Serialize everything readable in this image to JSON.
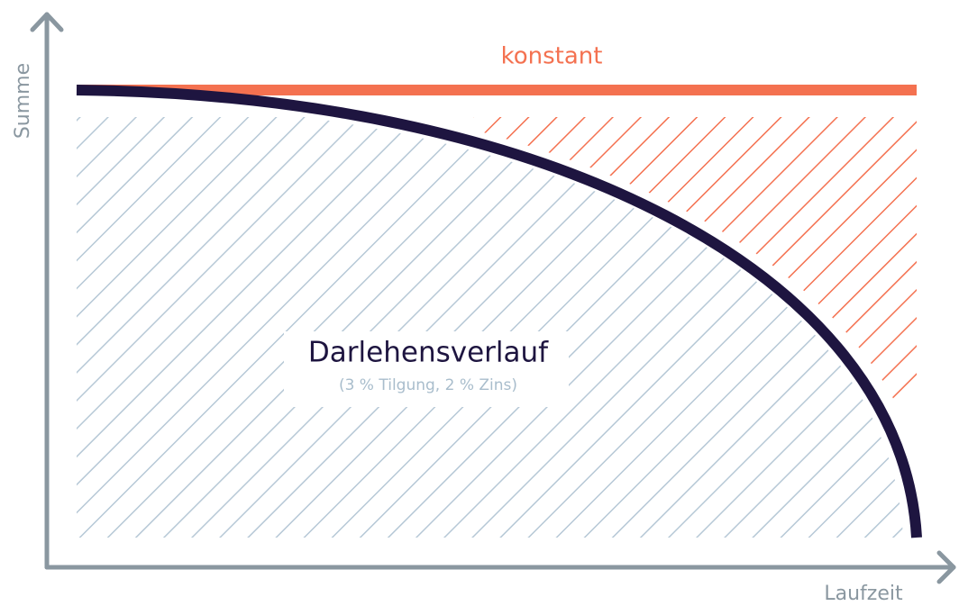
{
  "labels": {
    "y_axis": "Summe",
    "x_axis": "Laufzeit",
    "constant": "konstant",
    "title": "Darlehensverlauf",
    "subtitle": "(3 % Tilgung, 2 % Zins)"
  }
}
